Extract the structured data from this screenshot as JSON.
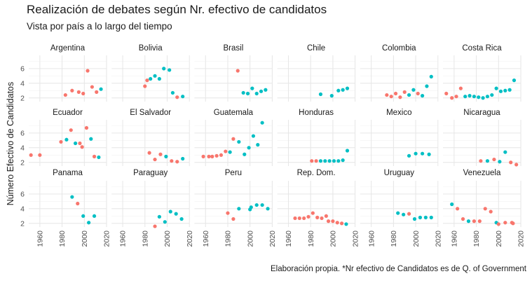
{
  "chart_data": {
    "type": "scatter",
    "title": "Realización de debates según Nr. efectivo de candidatos",
    "subtitle": "Vista por país a lo largo del tiempo",
    "ylabel": "Número Efectivo de Candidatos",
    "xlabel": "",
    "caption": "Elaboración propia. *Nr efectivo de Candidatos es de Q. of Government",
    "x_ticks": [
      1960,
      1980,
      2000,
      2020
    ],
    "y_ticks": [
      2,
      4,
      6
    ],
    "xlim": [
      1950,
      2020
    ],
    "ylim": [
      1.5,
      7.8
    ],
    "grid": true,
    "legend": "none",
    "colors": {
      "group_a": "#F8766D",
      "group_b": "#00BFC4"
    },
    "panels": [
      {
        "name": "Argentina",
        "points": [
          {
            "x": 1983,
            "y": 2.4,
            "g": "a"
          },
          {
            "x": 1989,
            "y": 3.0,
            "g": "a"
          },
          {
            "x": 1995,
            "y": 2.8,
            "g": "a"
          },
          {
            "x": 1999,
            "y": 2.6,
            "g": "a"
          },
          {
            "x": 2003,
            "y": 5.7,
            "g": "a"
          },
          {
            "x": 2007,
            "y": 3.5,
            "g": "a"
          },
          {
            "x": 2011,
            "y": 2.8,
            "g": "a"
          },
          {
            "x": 2015,
            "y": 3.2,
            "g": "b"
          }
        ]
      },
      {
        "name": "Bolivia",
        "points": [
          {
            "x": 1980,
            "y": 3.6,
            "g": "a"
          },
          {
            "x": 1982,
            "y": 4.4,
            "g": "a"
          },
          {
            "x": 1985,
            "y": 4.6,
            "g": "b"
          },
          {
            "x": 1989,
            "y": 5.0,
            "g": "b"
          },
          {
            "x": 1993,
            "y": 4.6,
            "g": "b"
          },
          {
            "x": 1997,
            "y": 6.0,
            "g": "b"
          },
          {
            "x": 2002,
            "y": 5.8,
            "g": "b"
          },
          {
            "x": 2005,
            "y": 2.7,
            "g": "b"
          },
          {
            "x": 2009,
            "y": 2.1,
            "g": "a"
          },
          {
            "x": 2014,
            "y": 2.2,
            "g": "b"
          }
        ]
      },
      {
        "name": "Brasil",
        "points": [
          {
            "x": 1989,
            "y": 5.7,
            "g": "a"
          },
          {
            "x": 1994,
            "y": 2.7,
            "g": "b"
          },
          {
            "x": 1998,
            "y": 2.6,
            "g": "b"
          },
          {
            "x": 2002,
            "y": 3.3,
            "g": "b"
          },
          {
            "x": 2006,
            "y": 2.6,
            "g": "b"
          },
          {
            "x": 2010,
            "y": 2.9,
            "g": "b"
          },
          {
            "x": 2014,
            "y": 3.1,
            "g": "b"
          }
        ]
      },
      {
        "name": "Chile",
        "points": [
          {
            "x": 1989,
            "y": 2.5,
            "g": "b"
          },
          {
            "x": 1999,
            "y": 2.3,
            "g": "b"
          },
          {
            "x": 2005,
            "y": 3.0,
            "g": "b"
          },
          {
            "x": 2009,
            "y": 3.1,
            "g": "b"
          },
          {
            "x": 2013,
            "y": 3.3,
            "g": "b"
          }
        ]
      },
      {
        "name": "Colombia",
        "points": [
          {
            "x": 1974,
            "y": 2.4,
            "g": "a"
          },
          {
            "x": 1978,
            "y": 2.2,
            "g": "a"
          },
          {
            "x": 1982,
            "y": 2.6,
            "g": "a"
          },
          {
            "x": 1986,
            "y": 2.1,
            "g": "a"
          },
          {
            "x": 1990,
            "y": 2.8,
            "g": "a"
          },
          {
            "x": 1994,
            "y": 2.4,
            "g": "b"
          },
          {
            "x": 1998,
            "y": 3.1,
            "g": "b"
          },
          {
            "x": 2002,
            "y": 2.6,
            "g": "a"
          },
          {
            "x": 2006,
            "y": 2.3,
            "g": "b"
          },
          {
            "x": 2010,
            "y": 3.6,
            "g": "b"
          },
          {
            "x": 2014,
            "y": 4.9,
            "g": "b"
          }
        ]
      },
      {
        "name": "Costa Rica",
        "points": [
          {
            "x": 1953,
            "y": 2.6,
            "g": "a"
          },
          {
            "x": 1958,
            "y": 2.0,
            "g": "a"
          },
          {
            "x": 1962,
            "y": 2.2,
            "g": "a"
          },
          {
            "x": 1966,
            "y": 3.3,
            "g": "a"
          },
          {
            "x": 1970,
            "y": 2.2,
            "g": "b"
          },
          {
            "x": 1974,
            "y": 2.3,
            "g": "b"
          },
          {
            "x": 1978,
            "y": 2.2,
            "g": "b"
          },
          {
            "x": 1982,
            "y": 2.1,
            "g": "b"
          },
          {
            "x": 1986,
            "y": 2.0,
            "g": "b"
          },
          {
            "x": 1990,
            "y": 2.2,
            "g": "b"
          },
          {
            "x": 1994,
            "y": 2.4,
            "g": "b"
          },
          {
            "x": 1998,
            "y": 3.3,
            "g": "b"
          },
          {
            "x": 2002,
            "y": 2.9,
            "g": "b"
          },
          {
            "x": 2006,
            "y": 3.0,
            "g": "b"
          },
          {
            "x": 2010,
            "y": 3.1,
            "g": "b"
          },
          {
            "x": 2014,
            "y": 4.4,
            "g": "b"
          }
        ]
      },
      {
        "name": "Ecuador",
        "points": [
          {
            "x": 1952,
            "y": 3.0,
            "g": "a"
          },
          {
            "x": 1960,
            "y": 3.0,
            "g": "a"
          },
          {
            "x": 1979,
            "y": 4.8,
            "g": "a"
          },
          {
            "x": 1984,
            "y": 5.1,
            "g": "b"
          },
          {
            "x": 1988,
            "y": 6.4,
            "g": "a"
          },
          {
            "x": 1992,
            "y": 4.6,
            "g": "b"
          },
          {
            "x": 1996,
            "y": 4.6,
            "g": "a"
          },
          {
            "x": 1998,
            "y": 4.1,
            "g": "a"
          },
          {
            "x": 2002,
            "y": 6.7,
            "g": "a"
          },
          {
            "x": 2006,
            "y": 5.2,
            "g": "b"
          },
          {
            "x": 2009,
            "y": 2.8,
            "g": "a"
          },
          {
            "x": 2013,
            "y": 2.7,
            "g": "b"
          }
        ]
      },
      {
        "name": "El Salvador",
        "points": [
          {
            "x": 1984,
            "y": 3.3,
            "g": "a"
          },
          {
            "x": 1989,
            "y": 2.4,
            "g": "a"
          },
          {
            "x": 1994,
            "y": 3.1,
            "g": "a"
          },
          {
            "x": 1999,
            "y": 2.8,
            "g": "b"
          },
          {
            "x": 2004,
            "y": 2.2,
            "g": "a"
          },
          {
            "x": 2009,
            "y": 2.1,
            "g": "a"
          },
          {
            "x": 2014,
            "y": 2.5,
            "g": "b"
          }
        ]
      },
      {
        "name": "Guatemala",
        "points": [
          {
            "x": 1958,
            "y": 2.8,
            "g": "a"
          },
          {
            "x": 1963,
            "y": 2.8,
            "g": "a"
          },
          {
            "x": 1966,
            "y": 2.8,
            "g": "a"
          },
          {
            "x": 1970,
            "y": 2.9,
            "g": "a"
          },
          {
            "x": 1974,
            "y": 3.0,
            "g": "a"
          },
          {
            "x": 1978,
            "y": 3.5,
            "g": "a"
          },
          {
            "x": 1982,
            "y": 3.4,
            "g": "b"
          },
          {
            "x": 1985,
            "y": 5.2,
            "g": "a"
          },
          {
            "x": 1990,
            "y": 4.8,
            "g": "b"
          },
          {
            "x": 1995,
            "y": 3.1,
            "g": "b"
          },
          {
            "x": 1999,
            "y": 4.0,
            "g": "b"
          },
          {
            "x": 2003,
            "y": 5.6,
            "g": "b"
          },
          {
            "x": 2007,
            "y": 4.4,
            "g": "b"
          },
          {
            "x": 2011,
            "y": 7.4,
            "g": "b"
          }
        ]
      },
      {
        "name": "Honduras",
        "points": [
          {
            "x": 1981,
            "y": 2.2,
            "g": "a"
          },
          {
            "x": 1985,
            "y": 2.2,
            "g": "a"
          },
          {
            "x": 1989,
            "y": 2.2,
            "g": "b"
          },
          {
            "x": 1993,
            "y": 2.2,
            "g": "b"
          },
          {
            "x": 1997,
            "y": 2.2,
            "g": "b"
          },
          {
            "x": 2001,
            "y": 2.2,
            "g": "b"
          },
          {
            "x": 2005,
            "y": 2.2,
            "g": "b"
          },
          {
            "x": 2009,
            "y": 2.3,
            "g": "b"
          },
          {
            "x": 2013,
            "y": 3.6,
            "g": "b"
          }
        ]
      },
      {
        "name": "Mexico",
        "points": [
          {
            "x": 1994,
            "y": 2.9,
            "g": "b"
          },
          {
            "x": 2000,
            "y": 3.2,
            "g": "b"
          },
          {
            "x": 2006,
            "y": 3.2,
            "g": "b"
          },
          {
            "x": 2012,
            "y": 3.1,
            "g": "b"
          }
        ]
      },
      {
        "name": "Nicaragua",
        "points": [
          {
            "x": 1984,
            "y": 2.2,
            "g": "a"
          },
          {
            "x": 1990,
            "y": 2.2,
            "g": "b"
          },
          {
            "x": 1996,
            "y": 2.4,
            "g": "a"
          },
          {
            "x": 2001,
            "y": 2.1,
            "g": "b"
          },
          {
            "x": 2006,
            "y": 3.4,
            "g": "b"
          },
          {
            "x": 2011,
            "y": 2.0,
            "g": "a"
          },
          {
            "x": 2016,
            "y": 1.7,
            "g": "a"
          }
        ]
      },
      {
        "name": "Panama",
        "points": [
          {
            "x": 1989,
            "y": 5.6,
            "g": "b"
          },
          {
            "x": 1994,
            "y": 4.7,
            "g": "a"
          },
          {
            "x": 1999,
            "y": 3.0,
            "g": "b"
          },
          {
            "x": 2004,
            "y": 2.1,
            "g": "b"
          },
          {
            "x": 2009,
            "y": 3.0,
            "g": "b"
          }
        ]
      },
      {
        "name": "Paraguay",
        "points": [
          {
            "x": 1989,
            "y": 1.6,
            "g": "a"
          },
          {
            "x": 1993,
            "y": 2.9,
            "g": "b"
          },
          {
            "x": 1998,
            "y": 2.2,
            "g": "b"
          },
          {
            "x": 2003,
            "y": 3.6,
            "g": "b"
          },
          {
            "x": 2008,
            "y": 3.3,
            "g": "b"
          },
          {
            "x": 2013,
            "y": 2.6,
            "g": "b"
          }
        ]
      },
      {
        "name": "Peru",
        "points": [
          {
            "x": 1980,
            "y": 3.4,
            "g": "a"
          },
          {
            "x": 1985,
            "y": 2.6,
            "g": "a"
          },
          {
            "x": 1990,
            "y": 4.0,
            "g": "b"
          },
          {
            "x": 2000,
            "y": 3.9,
            "g": "b"
          },
          {
            "x": 2001,
            "y": 4.2,
            "g": "b"
          },
          {
            "x": 2006,
            "y": 4.5,
            "g": "b"
          },
          {
            "x": 2011,
            "y": 4.5,
            "g": "b"
          },
          {
            "x": 2016,
            "y": 4.0,
            "g": "b"
          }
        ]
      },
      {
        "name": "Rep. Dom.",
        "points": [
          {
            "x": 1966,
            "y": 2.7,
            "g": "a"
          },
          {
            "x": 1970,
            "y": 2.7,
            "g": "a"
          },
          {
            "x": 1974,
            "y": 2.7,
            "g": "a"
          },
          {
            "x": 1978,
            "y": 2.9,
            "g": "a"
          },
          {
            "x": 1982,
            "y": 3.4,
            "g": "a"
          },
          {
            "x": 1986,
            "y": 2.8,
            "g": "a"
          },
          {
            "x": 1990,
            "y": 2.7,
            "g": "a"
          },
          {
            "x": 1994,
            "y": 3.0,
            "g": "a"
          },
          {
            "x": 1996,
            "y": 2.3,
            "g": "a"
          },
          {
            "x": 2000,
            "y": 2.3,
            "g": "a"
          },
          {
            "x": 2004,
            "y": 2.1,
            "g": "a"
          },
          {
            "x": 2008,
            "y": 2.0,
            "g": "a"
          },
          {
            "x": 2012,
            "y": 1.9,
            "g": "b"
          }
        ]
      },
      {
        "name": "Uruguay",
        "points": [
          {
            "x": 1984,
            "y": 3.4,
            "g": "b"
          },
          {
            "x": 1989,
            "y": 3.2,
            "g": "b"
          },
          {
            "x": 1994,
            "y": 3.3,
            "g": "a"
          },
          {
            "x": 1999,
            "y": 2.6,
            "g": "b"
          },
          {
            "x": 2004,
            "y": 2.8,
            "g": "b"
          },
          {
            "x": 2009,
            "y": 2.8,
            "g": "b"
          },
          {
            "x": 2014,
            "y": 2.8,
            "g": "b"
          }
        ]
      },
      {
        "name": "Venezuela",
        "points": [
          {
            "x": 1958,
            "y": 4.6,
            "g": "b"
          },
          {
            "x": 1963,
            "y": 4.0,
            "g": "a"
          },
          {
            "x": 1968,
            "y": 2.6,
            "g": "a"
          },
          {
            "x": 1973,
            "y": 2.3,
            "g": "b"
          },
          {
            "x": 1978,
            "y": 2.3,
            "g": "a"
          },
          {
            "x": 1983,
            "y": 2.3,
            "g": "a"
          },
          {
            "x": 1988,
            "y": 4.0,
            "g": "a"
          },
          {
            "x": 1993,
            "y": 3.6,
            "g": "a"
          },
          {
            "x": 1998,
            "y": 2.1,
            "g": "b"
          },
          {
            "x": 2000,
            "y": 1.9,
            "g": "a"
          },
          {
            "x": 2006,
            "y": 2.1,
            "g": "a"
          },
          {
            "x": 2012,
            "y": 2.1,
            "g": "a"
          },
          {
            "x": 2013,
            "y": 2.0,
            "g": "a"
          }
        ]
      }
    ]
  }
}
